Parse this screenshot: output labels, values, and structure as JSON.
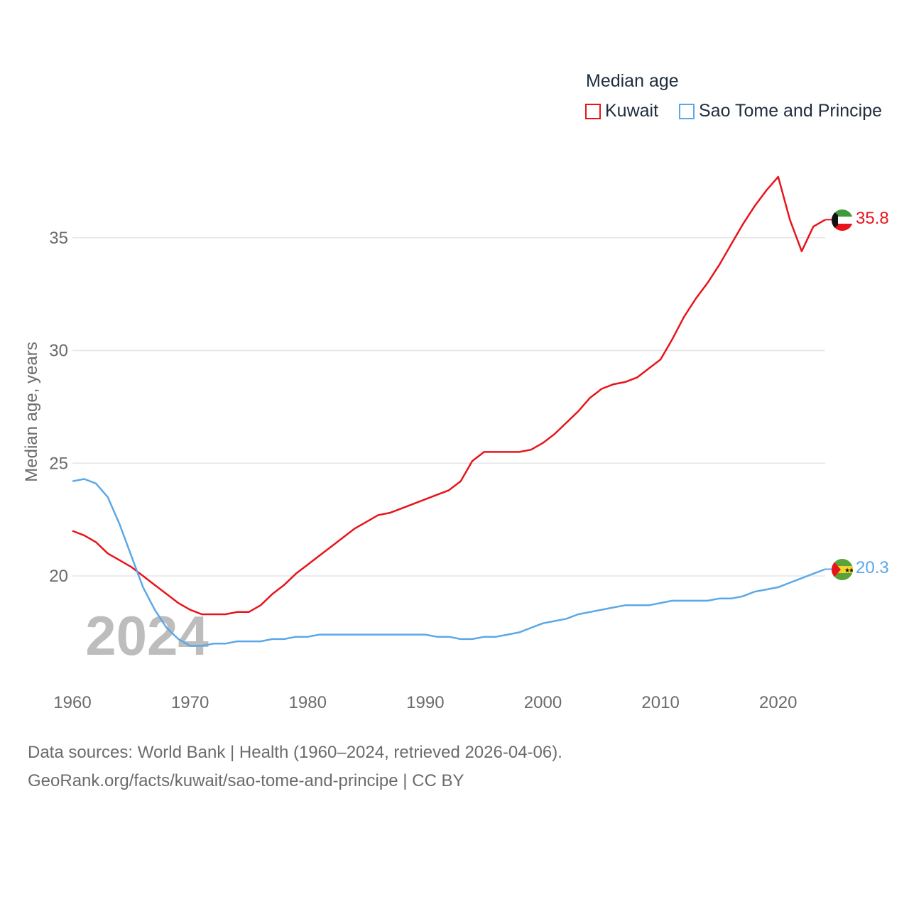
{
  "legend": {
    "title": "Median age",
    "items": [
      {
        "name": "Kuwait",
        "color": "#e8141b"
      },
      {
        "name": "Sao Tome and Principe",
        "color": "#5ca8e6"
      }
    ]
  },
  "year_watermark": "2024",
  "end_labels": {
    "kuwait": "35.8",
    "stp": "20.3"
  },
  "source": {
    "line1": "Data sources: World Bank | Health (1960–2024, retrieved 2026-04-06).",
    "line2": "GeoRank.org/facts/kuwait/sao-tome-and-principe | CC BY"
  },
  "chart_data": {
    "type": "line",
    "title": "Median age",
    "xlabel": "",
    "ylabel": "Median age, years",
    "xlim": [
      1960,
      2024
    ],
    "ylim": [
      15.5,
      39
    ],
    "xticks": [
      1960,
      1970,
      1980,
      1990,
      2000,
      2010,
      2020
    ],
    "yticks": [
      20,
      25,
      30,
      35
    ],
    "x": [
      1960,
      1961,
      1962,
      1963,
      1964,
      1965,
      1966,
      1967,
      1968,
      1969,
      1970,
      1971,
      1972,
      1973,
      1974,
      1975,
      1976,
      1977,
      1978,
      1979,
      1980,
      1981,
      1982,
      1983,
      1984,
      1985,
      1986,
      1987,
      1988,
      1989,
      1990,
      1991,
      1992,
      1993,
      1994,
      1995,
      1996,
      1997,
      1998,
      1999,
      2000,
      2001,
      2002,
      2003,
      2004,
      2005,
      2006,
      2007,
      2008,
      2009,
      2010,
      2011,
      2012,
      2013,
      2014,
      2015,
      2016,
      2017,
      2018,
      2019,
      2020,
      2021,
      2022,
      2023,
      2024
    ],
    "series": [
      {
        "name": "Kuwait",
        "color": "#e8141b",
        "values": [
          22.0,
          21.8,
          21.5,
          21.0,
          20.7,
          20.4,
          20.0,
          19.6,
          19.2,
          18.8,
          18.5,
          18.3,
          18.3,
          18.3,
          18.4,
          18.4,
          18.7,
          19.2,
          19.6,
          20.1,
          20.5,
          20.9,
          21.3,
          21.7,
          22.1,
          22.4,
          22.7,
          22.8,
          23.0,
          23.2,
          23.4,
          23.6,
          23.8,
          24.2,
          25.1,
          25.5,
          25.5,
          25.5,
          25.5,
          25.6,
          25.9,
          26.3,
          26.8,
          27.3,
          27.9,
          28.3,
          28.5,
          28.6,
          28.8,
          29.2,
          29.6,
          30.5,
          31.5,
          32.3,
          33.0,
          33.8,
          34.7,
          35.6,
          36.4,
          37.1,
          37.7,
          35.8,
          34.4,
          35.5,
          35.8
        ]
      },
      {
        "name": "Sao Tome and Principe",
        "color": "#5ca8e6",
        "values": [
          24.2,
          24.3,
          24.1,
          23.5,
          22.3,
          20.9,
          19.5,
          18.5,
          17.7,
          17.2,
          16.9,
          16.9,
          17.0,
          17.0,
          17.1,
          17.1,
          17.1,
          17.2,
          17.2,
          17.3,
          17.3,
          17.4,
          17.4,
          17.4,
          17.4,
          17.4,
          17.4,
          17.4,
          17.4,
          17.4,
          17.4,
          17.3,
          17.3,
          17.2,
          17.2,
          17.3,
          17.3,
          17.4,
          17.5,
          17.7,
          17.9,
          18.0,
          18.1,
          18.3,
          18.4,
          18.5,
          18.6,
          18.7,
          18.7,
          18.7,
          18.8,
          18.9,
          18.9,
          18.9,
          18.9,
          19.0,
          19.0,
          19.1,
          19.3,
          19.4,
          19.5,
          19.7,
          19.9,
          20.1,
          20.3
        ]
      }
    ]
  }
}
